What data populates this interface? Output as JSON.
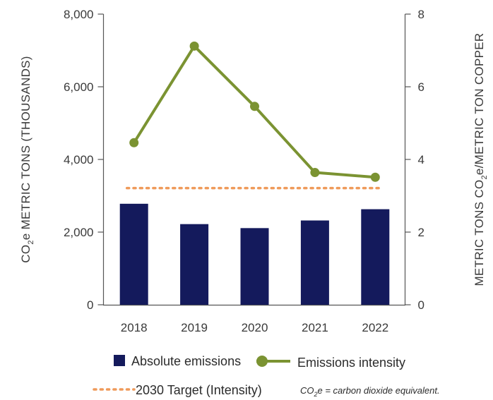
{
  "chart_data": {
    "type": "bar",
    "categories": [
      "2018",
      "2019",
      "2020",
      "2021",
      "2022"
    ],
    "series": [
      {
        "name": "Absolute emissions",
        "type": "bar",
        "axis": "left",
        "color": "#141a5c",
        "values": [
          2780,
          2220,
          2110,
          2320,
          2630
        ]
      },
      {
        "name": "Emissions intensity",
        "type": "line",
        "axis": "right",
        "color": "#7b9332",
        "values": [
          4.46,
          7.12,
          5.46,
          3.64,
          3.51
        ]
      },
      {
        "name": "2030 Target (Intensity)",
        "type": "line",
        "style": "dotted",
        "axis": "right",
        "color": "#ef9a5a",
        "values": [
          3.21,
          3.21,
          3.21,
          3.21,
          3.21
        ]
      }
    ],
    "y_left": {
      "range": [
        0,
        8000
      ],
      "ticks": [
        "0",
        "2,000",
        "4,000",
        "6,000",
        "8,000"
      ],
      "label_pre": "CO",
      "label_sub": "2",
      "label_post": "e METRIC TONS (THOUSANDS)"
    },
    "y_right": {
      "range": [
        0,
        8
      ],
      "ticks": [
        "0",
        "2",
        "4",
        "6",
        "8"
      ],
      "label_pre": "METRIC TONS CO",
      "label_sub": "2",
      "label_post": "e/METRIC TON COPPER"
    },
    "grid": false
  },
  "legend": {
    "bar_label": "Absolute emissions",
    "line_label": "Emissions intensity",
    "target_label": "2030 Target (Intensity)"
  },
  "footnote": {
    "pre": "CO",
    "sub": "2",
    "post": "e = carbon dioxide equivalent."
  }
}
